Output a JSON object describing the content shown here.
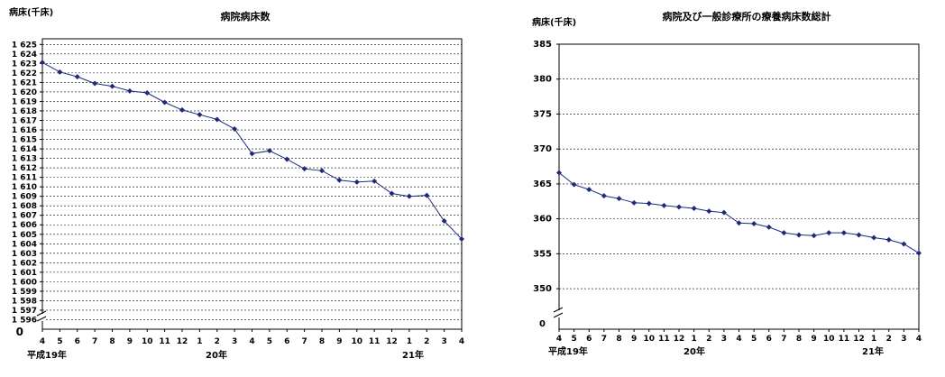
{
  "chart_data": [
    {
      "type": "line",
      "title": "病院病床数",
      "ylabel": "病床(千床)",
      "y_break_label": "0",
      "ylim": [
        1595,
        1626
      ],
      "yticks": [
        1596,
        1597,
        1598,
        1599,
        1600,
        1601,
        1602,
        1603,
        1604,
        1605,
        1606,
        1607,
        1608,
        1609,
        1610,
        1611,
        1612,
        1613,
        1614,
        1615,
        1616,
        1617,
        1618,
        1619,
        1620,
        1621,
        1622,
        1623,
        1624,
        1625
      ],
      "ytick_labels": [
        "1 596",
        "1 597",
        "1 598",
        "1 599",
        "1 600",
        "1 601",
        "1 602",
        "1 603",
        "1 604",
        "1 605",
        "1 606",
        "1 607",
        "1 608",
        "1 609",
        "1 610",
        "1 611",
        "1 612",
        "1 613",
        "1 614",
        "1 615",
        "1 616",
        "1 617",
        "1 618",
        "1 619",
        "1 620",
        "1 621",
        "1 622",
        "1 623",
        "1 624",
        "1 625"
      ],
      "categories": [
        "4",
        "5",
        "6",
        "7",
        "8",
        "9",
        "10",
        "11",
        "12",
        "1",
        "2",
        "3",
        "4",
        "5",
        "6",
        "7",
        "8",
        "9",
        "10",
        "11",
        "12",
        "1",
        "2",
        "3",
        "4"
      ],
      "year_labels": [
        {
          "label": "平成19年",
          "index": 0
        },
        {
          "label": "20年",
          "index": 10
        },
        {
          "label": "21年",
          "index": 22
        }
      ],
      "values": [
        1623.1,
        1622.1,
        1621.6,
        1620.9,
        1620.6,
        1620.1,
        1619.9,
        1618.9,
        1618.1,
        1617.6,
        1617.1,
        1616.1,
        1613.5,
        1613.8,
        1612.9,
        1611.9,
        1611.7,
        1610.7,
        1610.5,
        1610.6,
        1609.3,
        1609.0,
        1609.1,
        1606.4,
        1604.5
      ],
      "grid": true,
      "color": "#1f2a78"
    },
    {
      "type": "line",
      "title": "病院及び一般診療所の療養病床数総計",
      "ylabel": "病床(千床)",
      "y_break_label": "0",
      "ylim": [
        345,
        385
      ],
      "yticks": [
        350,
        355,
        360,
        365,
        370,
        375,
        380,
        385
      ],
      "ytick_labels": [
        "350",
        "355",
        "360",
        "365",
        "370",
        "375",
        "380",
        "385"
      ],
      "categories": [
        "4",
        "5",
        "6",
        "7",
        "8",
        "9",
        "10",
        "11",
        "12",
        "1",
        "2",
        "3",
        "4",
        "5",
        "6",
        "7",
        "8",
        "9",
        "10",
        "11",
        "12",
        "1",
        "2",
        "3",
        "4"
      ],
      "year_labels": [
        {
          "label": "平成19年",
          "index": 0
        },
        {
          "label": "20年",
          "index": 8
        },
        {
          "label": "21年",
          "index": 19
        }
      ],
      "values": [
        366.6,
        364.9,
        364.2,
        363.3,
        362.9,
        362.3,
        362.2,
        361.9,
        361.7,
        361.5,
        361.1,
        360.9,
        359.4,
        359.3,
        358.8,
        358.0,
        357.7,
        357.6,
        358.0,
        358.0,
        357.7,
        357.3,
        357.0,
        356.4,
        355.1
      ],
      "grid": true,
      "color": "#1f2a78"
    }
  ]
}
